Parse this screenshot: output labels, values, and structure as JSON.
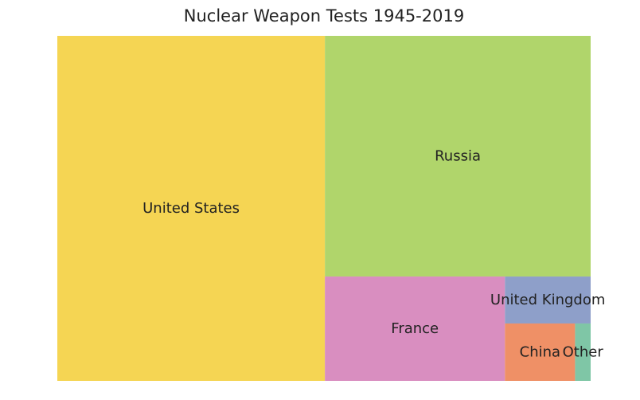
{
  "chart_data": {
    "type": "treemap",
    "title": "Nuclear Weapon Tests 1945-2019",
    "xlabel": "",
    "ylabel": "",
    "grid": false,
    "items": [
      {
        "label": "United States",
        "value": 1032,
        "color": "#f5d553"
      },
      {
        "label": "Russia",
        "value": 715,
        "color": "#b0d56b"
      },
      {
        "label": "France",
        "value": 210,
        "color": "#d98ec0"
      },
      {
        "label": "United Kingdom",
        "value": 45,
        "color": "#8e9fc9"
      },
      {
        "label": "China",
        "value": 45,
        "color": "#ef9066"
      },
      {
        "label": "Other",
        "value": 10,
        "color": "#7fc6a6"
      }
    ]
  }
}
